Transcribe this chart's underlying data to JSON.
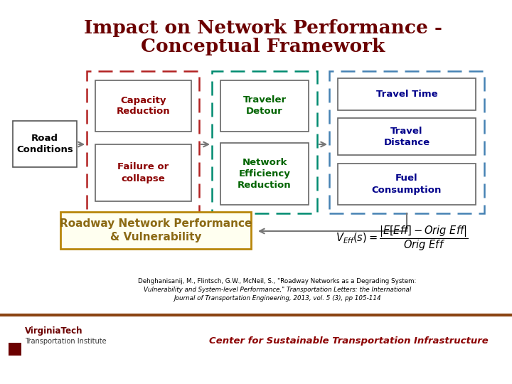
{
  "title_line1": "Impact on Network Performance -",
  "title_line2": "Conceptual Framework",
  "title_color": "#6B0000",
  "bg_color": "#FFFFFF",
  "road_conditions_text": "Road\nConditions",
  "box1_text": "Capacity\nReduction",
  "box2_text": "Failure or\ncollapse",
  "box3_text": "Traveler\nDetour",
  "box4_text": "Network\nEfficiency\nReduction",
  "box5_text": "Travel Time",
  "box6_text": "Travel\nDistance",
  "box7_text": "Fuel\nConsumption",
  "roadway_text": "Roadway Network Performance\n& Vulnerability",
  "citation_line1": "Dehghanisanij, M., Flintsch, G.W., McNeil, S., \"Roadway Networks as a Degrading System:",
  "citation_line2": "Vulnerability and System-level Performance,\" Transportation Letters: the International",
  "citation_line3": "Journal of Transportation Engineering, 2013, vol. 5 (3), pp 105-114",
  "footer_text": "Center for Sustainable Transportation Infrastructure",
  "vt_name": "VirginiaTech",
  "vt_sub": "Transportation Institute",
  "group1_border": "#B22222",
  "group2_border": "#008B70",
  "group3_border": "#4682B4",
  "roadway_bg": "#FFFFF0",
  "roadway_border": "#B8860B",
  "roadway_text_color": "#8B6914",
  "box1_text_color": "#8B0000",
  "box2_text_color": "#8B0000",
  "box3_text_color": "#006400",
  "box4_text_color": "#006400",
  "box5_text_color": "#00008B",
  "box6_text_color": "#00008B",
  "box7_text_color": "#00008B",
  "road_conditions_color": "#000000",
  "arrow_color": "#777777",
  "footer_line_color": "#8B4513",
  "footer_text_color": "#8B0000",
  "inner_border_color": "#666666"
}
